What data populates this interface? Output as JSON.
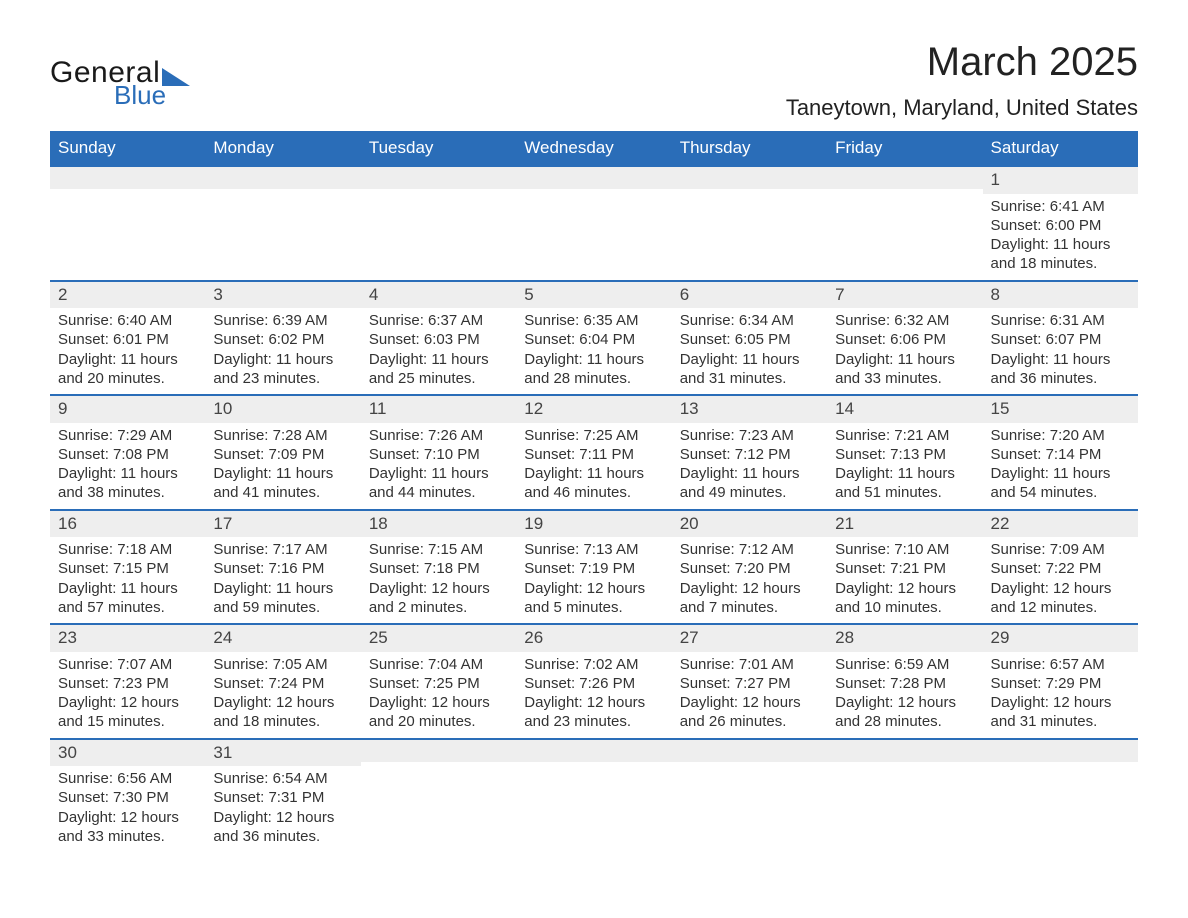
{
  "logo": {
    "text1": "General",
    "text2": "Blue"
  },
  "title": {
    "month": "March 2025",
    "location": "Taneytown, Maryland, United States"
  },
  "colors": {
    "header_bg": "#2a6db8",
    "header_fg": "#ffffff",
    "daynum_bg": "#eeeeee",
    "border": "#2a6db8"
  },
  "columns": [
    "Sunday",
    "Monday",
    "Tuesday",
    "Wednesday",
    "Thursday",
    "Friday",
    "Saturday"
  ],
  "weeks": [
    [
      null,
      null,
      null,
      null,
      null,
      null,
      {
        "n": "1",
        "sr": "Sunrise: 6:41 AM",
        "ss": "Sunset: 6:00 PM",
        "dl": "Daylight: 11 hours and 18 minutes."
      }
    ],
    [
      {
        "n": "2",
        "sr": "Sunrise: 6:40 AM",
        "ss": "Sunset: 6:01 PM",
        "dl": "Daylight: 11 hours and 20 minutes."
      },
      {
        "n": "3",
        "sr": "Sunrise: 6:39 AM",
        "ss": "Sunset: 6:02 PM",
        "dl": "Daylight: 11 hours and 23 minutes."
      },
      {
        "n": "4",
        "sr": "Sunrise: 6:37 AM",
        "ss": "Sunset: 6:03 PM",
        "dl": "Daylight: 11 hours and 25 minutes."
      },
      {
        "n": "5",
        "sr": "Sunrise: 6:35 AM",
        "ss": "Sunset: 6:04 PM",
        "dl": "Daylight: 11 hours and 28 minutes."
      },
      {
        "n": "6",
        "sr": "Sunrise: 6:34 AM",
        "ss": "Sunset: 6:05 PM",
        "dl": "Daylight: 11 hours and 31 minutes."
      },
      {
        "n": "7",
        "sr": "Sunrise: 6:32 AM",
        "ss": "Sunset: 6:06 PM",
        "dl": "Daylight: 11 hours and 33 minutes."
      },
      {
        "n": "8",
        "sr": "Sunrise: 6:31 AM",
        "ss": "Sunset: 6:07 PM",
        "dl": "Daylight: 11 hours and 36 minutes."
      }
    ],
    [
      {
        "n": "9",
        "sr": "Sunrise: 7:29 AM",
        "ss": "Sunset: 7:08 PM",
        "dl": "Daylight: 11 hours and 38 minutes."
      },
      {
        "n": "10",
        "sr": "Sunrise: 7:28 AM",
        "ss": "Sunset: 7:09 PM",
        "dl": "Daylight: 11 hours and 41 minutes."
      },
      {
        "n": "11",
        "sr": "Sunrise: 7:26 AM",
        "ss": "Sunset: 7:10 PM",
        "dl": "Daylight: 11 hours and 44 minutes."
      },
      {
        "n": "12",
        "sr": "Sunrise: 7:25 AM",
        "ss": "Sunset: 7:11 PM",
        "dl": "Daylight: 11 hours and 46 minutes."
      },
      {
        "n": "13",
        "sr": "Sunrise: 7:23 AM",
        "ss": "Sunset: 7:12 PM",
        "dl": "Daylight: 11 hours and 49 minutes."
      },
      {
        "n": "14",
        "sr": "Sunrise: 7:21 AM",
        "ss": "Sunset: 7:13 PM",
        "dl": "Daylight: 11 hours and 51 minutes."
      },
      {
        "n": "15",
        "sr": "Sunrise: 7:20 AM",
        "ss": "Sunset: 7:14 PM",
        "dl": "Daylight: 11 hours and 54 minutes."
      }
    ],
    [
      {
        "n": "16",
        "sr": "Sunrise: 7:18 AM",
        "ss": "Sunset: 7:15 PM",
        "dl": "Daylight: 11 hours and 57 minutes."
      },
      {
        "n": "17",
        "sr": "Sunrise: 7:17 AM",
        "ss": "Sunset: 7:16 PM",
        "dl": "Daylight: 11 hours and 59 minutes."
      },
      {
        "n": "18",
        "sr": "Sunrise: 7:15 AM",
        "ss": "Sunset: 7:18 PM",
        "dl": "Daylight: 12 hours and 2 minutes."
      },
      {
        "n": "19",
        "sr": "Sunrise: 7:13 AM",
        "ss": "Sunset: 7:19 PM",
        "dl": "Daylight: 12 hours and 5 minutes."
      },
      {
        "n": "20",
        "sr": "Sunrise: 7:12 AM",
        "ss": "Sunset: 7:20 PM",
        "dl": "Daylight: 12 hours and 7 minutes."
      },
      {
        "n": "21",
        "sr": "Sunrise: 7:10 AM",
        "ss": "Sunset: 7:21 PM",
        "dl": "Daylight: 12 hours and 10 minutes."
      },
      {
        "n": "22",
        "sr": "Sunrise: 7:09 AM",
        "ss": "Sunset: 7:22 PM",
        "dl": "Daylight: 12 hours and 12 minutes."
      }
    ],
    [
      {
        "n": "23",
        "sr": "Sunrise: 7:07 AM",
        "ss": "Sunset: 7:23 PM",
        "dl": "Daylight: 12 hours and 15 minutes."
      },
      {
        "n": "24",
        "sr": "Sunrise: 7:05 AM",
        "ss": "Sunset: 7:24 PM",
        "dl": "Daylight: 12 hours and 18 minutes."
      },
      {
        "n": "25",
        "sr": "Sunrise: 7:04 AM",
        "ss": "Sunset: 7:25 PM",
        "dl": "Daylight: 12 hours and 20 minutes."
      },
      {
        "n": "26",
        "sr": "Sunrise: 7:02 AM",
        "ss": "Sunset: 7:26 PM",
        "dl": "Daylight: 12 hours and 23 minutes."
      },
      {
        "n": "27",
        "sr": "Sunrise: 7:01 AM",
        "ss": "Sunset: 7:27 PM",
        "dl": "Daylight: 12 hours and 26 minutes."
      },
      {
        "n": "28",
        "sr": "Sunrise: 6:59 AM",
        "ss": "Sunset: 7:28 PM",
        "dl": "Daylight: 12 hours and 28 minutes."
      },
      {
        "n": "29",
        "sr": "Sunrise: 6:57 AM",
        "ss": "Sunset: 7:29 PM",
        "dl": "Daylight: 12 hours and 31 minutes."
      }
    ],
    [
      {
        "n": "30",
        "sr": "Sunrise: 6:56 AM",
        "ss": "Sunset: 7:30 PM",
        "dl": "Daylight: 12 hours and 33 minutes."
      },
      {
        "n": "31",
        "sr": "Sunrise: 6:54 AM",
        "ss": "Sunset: 7:31 PM",
        "dl": "Daylight: 12 hours and 36 minutes."
      },
      null,
      null,
      null,
      null,
      null
    ]
  ]
}
